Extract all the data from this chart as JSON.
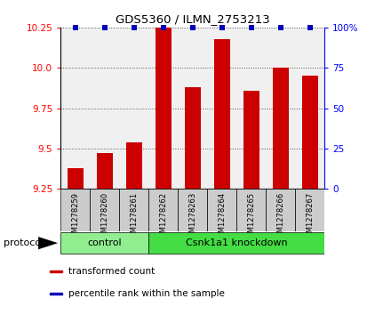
{
  "title": "GDS5360 / ILMN_2753213",
  "samples": [
    "GSM1278259",
    "GSM1278260",
    "GSM1278261",
    "GSM1278262",
    "GSM1278263",
    "GSM1278264",
    "GSM1278265",
    "GSM1278266",
    "GSM1278267"
  ],
  "transformed_counts": [
    9.38,
    9.47,
    9.54,
    10.25,
    9.88,
    10.18,
    9.86,
    10.0,
    9.95
  ],
  "groups": [
    {
      "label": "control",
      "indices": [
        0,
        1,
        2
      ],
      "color": "#90EE90"
    },
    {
      "label": "Csnk1a1 knockdown",
      "indices": [
        3,
        4,
        5,
        6,
        7,
        8
      ],
      "color": "#44DD44"
    }
  ],
  "ylim": [
    9.25,
    10.25
  ],
  "yticks": [
    9.25,
    9.5,
    9.75,
    10.0,
    10.25
  ],
  "right_yticks": [
    0,
    25,
    50,
    75,
    100
  ],
  "bar_color": "#CC0000",
  "percentile_color": "#0000BB",
  "bar_width": 0.55,
  "plot_bg_color": "#f0f0f0",
  "label_area_color": "#cccccc",
  "protocol_label": "protocol",
  "legend_items": [
    {
      "label": "transformed count",
      "color": "#CC0000"
    },
    {
      "label": "percentile rank within the sample",
      "color": "#0000BB"
    }
  ]
}
